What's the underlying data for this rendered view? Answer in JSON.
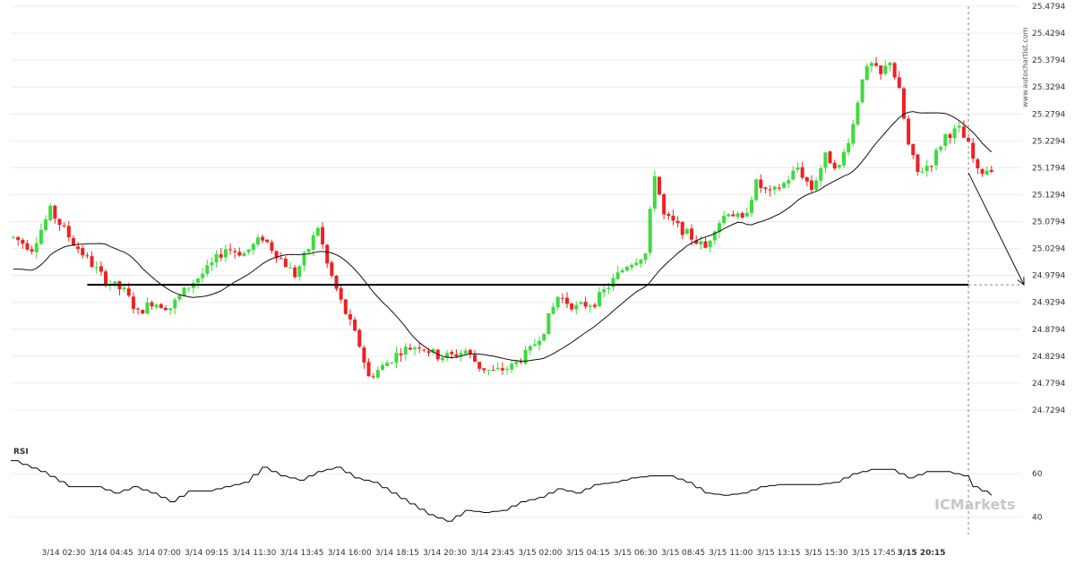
{
  "chart_data": {
    "type": "candlestick",
    "y_ticks": [
      "25.4794",
      "25.4294",
      "25.3794",
      "25.3294",
      "25.2794",
      "25.2294",
      "25.1794",
      "25.1294",
      "25.0794",
      "25.0294",
      "24.9794",
      "24.9294",
      "24.8794",
      "24.8294",
      "24.7794",
      "24.7294"
    ],
    "ylim": [
      24.7094,
      25.4794
    ],
    "x_ticks": [
      "3/14 02:30",
      "3/14 04:45",
      "3/14 07:00",
      "3/14 09:15",
      "3/14 11:30",
      "3/14 13:45",
      "3/14 16:00",
      "3/14 18:15",
      "3/14 20:30",
      "3/14 23:45",
      "3/15 02:00",
      "3/15 04:15",
      "3/15 06:30",
      "3/15 08:45",
      "3/15 11:00",
      "3/15 13:15",
      "3/15 15:30",
      "3/15 17:45",
      "3/15 20:15"
    ],
    "current_x_label": "3/15 20:15",
    "support_level": 24.962,
    "projection": {
      "from": 25.17,
      "to": 24.962
    },
    "price_anchors": [
      [
        0,
        25.05
      ],
      [
        4,
        25.03
      ],
      [
        8,
        25.1
      ],
      [
        13,
        25.04
      ],
      [
        17,
        25.0
      ],
      [
        20,
        24.97
      ],
      [
        24,
        24.95
      ],
      [
        27,
        24.91
      ],
      [
        30,
        24.93
      ],
      [
        34,
        24.92
      ],
      [
        38,
        24.96
      ],
      [
        42,
        24.99
      ],
      [
        46,
        25.03
      ],
      [
        50,
        25.02
      ],
      [
        54,
        25.05
      ],
      [
        58,
        25.01
      ],
      [
        61,
        24.98
      ],
      [
        64,
        25.03
      ],
      [
        66,
        25.07
      ],
      [
        68,
        25.0
      ],
      [
        71,
        24.93
      ],
      [
        73,
        24.89
      ],
      [
        75,
        24.85
      ],
      [
        77,
        24.79
      ],
      [
        80,
        24.81
      ],
      [
        84,
        24.84
      ],
      [
        88,
        24.85
      ],
      [
        92,
        24.83
      ],
      [
        95,
        24.83
      ],
      [
        98,
        24.84
      ],
      [
        101,
        24.81
      ],
      [
        104,
        24.8
      ],
      [
        108,
        24.81
      ],
      [
        112,
        24.84
      ],
      [
        115,
        24.88
      ],
      [
        118,
        24.94
      ],
      [
        122,
        24.92
      ],
      [
        126,
        24.93
      ],
      [
        130,
        24.97
      ],
      [
        133,
        25.0
      ],
      [
        137,
        25.02
      ],
      [
        139,
        25.17
      ],
      [
        141,
        25.09
      ],
      [
        144,
        25.07
      ],
      [
        147,
        25.05
      ],
      [
        150,
        25.03
      ],
      [
        152,
        25.07
      ],
      [
        155,
        25.1
      ],
      [
        158,
        25.08
      ],
      [
        161,
        25.15
      ],
      [
        164,
        25.13
      ],
      [
        167,
        25.15
      ],
      [
        170,
        25.18
      ],
      [
        173,
        25.14
      ],
      [
        176,
        25.2
      ],
      [
        179,
        25.18
      ],
      [
        182,
        25.26
      ],
      [
        184,
        25.35
      ],
      [
        186,
        25.37
      ],
      [
        188,
        25.35
      ],
      [
        190,
        25.38
      ],
      [
        192,
        25.32
      ],
      [
        194,
        25.22
      ],
      [
        196,
        25.17
      ],
      [
        199,
        25.19
      ],
      [
        202,
        25.24
      ],
      [
        205,
        25.25
      ],
      [
        207,
        25.22
      ],
      [
        209,
        25.17
      ],
      [
        212,
        25.18
      ]
    ],
    "candle_count": 213,
    "rsi": {
      "title": "RSI",
      "y_ticks": [
        "60",
        "40"
      ],
      "ylim": [
        36,
        70
      ],
      "anchors": [
        [
          0,
          66
        ],
        [
          6,
          61
        ],
        [
          12,
          54
        ],
        [
          18,
          54
        ],
        [
          22,
          51
        ],
        [
          26,
          54
        ],
        [
          30,
          51
        ],
        [
          34,
          47
        ],
        [
          38,
          52
        ],
        [
          42,
          52
        ],
        [
          46,
          54
        ],
        [
          50,
          56
        ],
        [
          54,
          63
        ],
        [
          58,
          59
        ],
        [
          62,
          57
        ],
        [
          66,
          61
        ],
        [
          70,
          63
        ],
        [
          74,
          58
        ],
        [
          78,
          56
        ],
        [
          82,
          51
        ],
        [
          86,
          46
        ],
        [
          90,
          41
        ],
        [
          94,
          38
        ],
        [
          98,
          43
        ],
        [
          102,
          42
        ],
        [
          106,
          43
        ],
        [
          110,
          47
        ],
        [
          114,
          49
        ],
        [
          118,
          53
        ],
        [
          122,
          51
        ],
        [
          126,
          55
        ],
        [
          130,
          56
        ],
        [
          134,
          58
        ],
        [
          138,
          59
        ],
        [
          142,
          59
        ],
        [
          146,
          56
        ],
        [
          150,
          51
        ],
        [
          154,
          50
        ],
        [
          158,
          51
        ],
        [
          162,
          54
        ],
        [
          166,
          55
        ],
        [
          170,
          55
        ],
        [
          174,
          55
        ],
        [
          178,
          56
        ],
        [
          182,
          60
        ],
        [
          186,
          62
        ],
        [
          190,
          62
        ],
        [
          194,
          58
        ],
        [
          198,
          61
        ],
        [
          202,
          61
        ],
        [
          206,
          59
        ],
        [
          208,
          54
        ],
        [
          212,
          50
        ]
      ]
    }
  },
  "watermark": "www.autochartist.com",
  "brand": {
    "text": "ICMarkets"
  }
}
